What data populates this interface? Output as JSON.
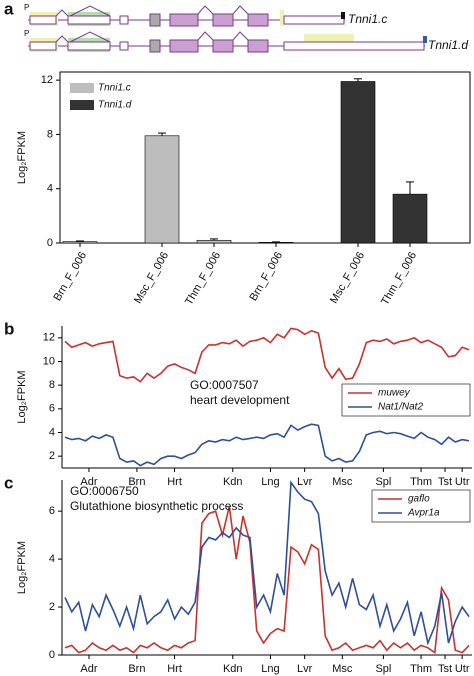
{
  "panel_labels": [
    "a",
    "b",
    "c"
  ],
  "gene_names": [
    "Tnni1.c",
    "Tnni1.d"
  ],
  "promoter_label": "P",
  "chart_data": [
    {
      "type": "bar",
      "ylabel": "Log₂FPKM",
      "categories": [
        "Brn_F_006",
        "Msc_F_006",
        "Thm_F_006"
      ],
      "series": [
        {
          "name": "Tnni1.c",
          "color": "#bdbdbd",
          "values": [
            0.1,
            7.9,
            0.2
          ],
          "errors": [
            0.05,
            0.2,
            0.1
          ]
        },
        {
          "name": "Tnni1.d",
          "color": "#333333",
          "values": [
            0.05,
            11.9,
            3.6
          ],
          "errors": [
            0.03,
            0.2,
            0.9
          ]
        }
      ],
      "ylim": [
        0,
        12.6
      ],
      "yticks": [
        0,
        4,
        8,
        12
      ]
    },
    {
      "type": "line",
      "ylabel": "Log₂FPKM",
      "annotation": [
        "GO:0007507",
        "heart development"
      ],
      "series": [
        {
          "name": "muwey",
          "color": "#c8322f",
          "values": [
            11.7,
            11.2,
            11.4,
            11.6,
            11.3,
            11.5,
            11.6,
            11.7,
            8.8,
            8.6,
            8.7,
            8.3,
            9.0,
            8.6,
            9.0,
            9.6,
            9.8,
            9.5,
            9.3,
            9.0,
            10.8,
            11.4,
            11.4,
            11.6,
            11.5,
            11.8,
            11.3,
            11.7,
            11.8,
            12.0,
            11.6,
            12.3,
            12.0,
            12.8,
            12.7,
            12.3,
            12.6,
            12.4,
            9.5,
            8.6,
            9.4,
            8.5,
            8.6,
            9.8,
            11.6,
            11.8,
            11.7,
            11.9,
            11.5,
            11.7,
            11.8,
            12.0,
            11.6,
            11.8,
            11.5,
            11.2,
            10.4,
            10.5,
            11.2,
            11.0
          ]
        },
        {
          "name": "Nat1/Nat2",
          "color": "#2f4f9a",
          "values": [
            3.6,
            3.4,
            3.5,
            3.3,
            3.7,
            3.5,
            3.8,
            3.6,
            1.8,
            1.5,
            1.6,
            1.2,
            1.5,
            1.3,
            1.8,
            2.0,
            2.0,
            1.8,
            2.1,
            2.3,
            3.0,
            3.3,
            3.2,
            3.4,
            3.3,
            3.6,
            3.4,
            3.5,
            3.6,
            3.5,
            3.8,
            3.9,
            3.6,
            4.6,
            4.2,
            4.5,
            4.7,
            4.6,
            2.0,
            1.6,
            1.8,
            1.5,
            1.6,
            2.4,
            3.8,
            4.0,
            4.1,
            3.9,
            4.0,
            3.9,
            3.7,
            3.5,
            4.0,
            3.6,
            3.4,
            3.0,
            3.6,
            3.2,
            3.4,
            3.3
          ]
        }
      ],
      "xlim": [
        0,
        59
      ],
      "xticks": [
        {
          "value": 3.5,
          "label": "Adr"
        },
        {
          "value": 10.5,
          "label": "Brn"
        },
        {
          "value": 16,
          "label": "Hrt"
        },
        {
          "value": 24.5,
          "label": "Kdn"
        },
        {
          "value": 30,
          "label": "Lng"
        },
        {
          "value": 35,
          "label": "Lvr"
        },
        {
          "value": 40.5,
          "label": "Msc"
        },
        {
          "value": 46.5,
          "label": "Spl"
        },
        {
          "value": 52,
          "label": "Thm"
        },
        {
          "value": 55.5,
          "label": "Tst"
        },
        {
          "value": 58,
          "label": "Utr"
        }
      ],
      "ylim": [
        1,
        13
      ],
      "yticks": [
        2,
        4,
        6,
        8,
        10,
        12
      ]
    },
    {
      "type": "line",
      "ylabel": "Log₂FPKM",
      "annotation": [
        "GO:0006750",
        "Glutathione biosynthetic process"
      ],
      "series": [
        {
          "name": "gaflo",
          "color": "#c8322f",
          "values": [
            0.3,
            0.4,
            0.1,
            0.2,
            0.5,
            0.3,
            0.2,
            0.4,
            0.2,
            0.3,
            0.1,
            0.4,
            0.3,
            0.5,
            0.3,
            0.2,
            0.4,
            0.3,
            0.5,
            0.6,
            5.5,
            5.9,
            6.0,
            5.0,
            6.2,
            4.0,
            5.8,
            4.7,
            1.0,
            0.5,
            0.9,
            1.1,
            1.0,
            4.5,
            4.3,
            3.8,
            4.6,
            4.4,
            0.8,
            0.2,
            0.3,
            0.5,
            0.2,
            0.3,
            0.4,
            0.3,
            0.6,
            0.2,
            0.5,
            0.3,
            0.5,
            0.2,
            0.4,
            0.3,
            0.1,
            2.8,
            2.3,
            0.2,
            0.1,
            0.4
          ]
        },
        {
          "name": "Avpr1a",
          "color": "#2f4f9a",
          "values": [
            2.4,
            1.8,
            2.2,
            1.0,
            2.1,
            1.6,
            2.5,
            1.9,
            1.2,
            2.0,
            1.1,
            2.5,
            1.3,
            1.6,
            1.8,
            2.3,
            1.5,
            2.0,
            1.7,
            2.2,
            4.5,
            4.9,
            4.8,
            5.1,
            4.9,
            5.3,
            5.0,
            4.9,
            2.0,
            2.5,
            1.8,
            3.4,
            2.5,
            7.2,
            6.8,
            6.5,
            6.4,
            5.9,
            3.5,
            2.5,
            3.0,
            2.0,
            3.2,
            2.1,
            1.9,
            2.5,
            1.2,
            2.1,
            1.0,
            1.5,
            2.2,
            0.8,
            1.8,
            0.5,
            1.2,
            2.6,
            0.5,
            1.4,
            2.0,
            1.6
          ]
        }
      ],
      "xlim": [
        0,
        59
      ],
      "xticks": [
        {
          "value": 3.5,
          "label": "Adr"
        },
        {
          "value": 10.5,
          "label": "Brn"
        },
        {
          "value": 16,
          "label": "Hrt"
        },
        {
          "value": 24.5,
          "label": "Kdn"
        },
        {
          "value": 30,
          "label": "Lng"
        },
        {
          "value": 35,
          "label": "Lvr"
        },
        {
          "value": 40.5,
          "label": "Msc"
        },
        {
          "value": 46.5,
          "label": "Spl"
        },
        {
          "value": 52,
          "label": "Thm"
        },
        {
          "value": 55.5,
          "label": "Tst"
        },
        {
          "value": 58,
          "label": "Utr"
        }
      ],
      "ylim": [
        0,
        7.3
      ],
      "yticks": [
        0,
        2,
        4,
        6
      ]
    }
  ]
}
